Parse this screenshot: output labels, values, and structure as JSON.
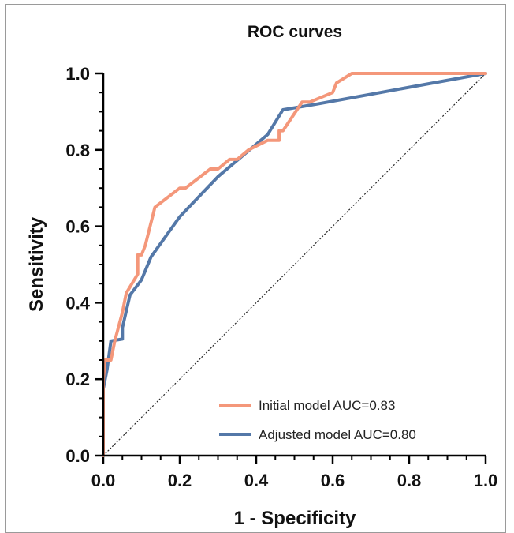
{
  "chart_data": {
    "type": "line",
    "title": "ROC curves",
    "xlabel": "1 - Specificity",
    "ylabel": "Sensitivity",
    "xlim": [
      0,
      1
    ],
    "ylim": [
      0,
      1
    ],
    "x_ticks": [
      "0.0",
      "0.2",
      "0.4",
      "0.6",
      "0.8",
      "1.0"
    ],
    "y_ticks": [
      "0.0",
      "0.2",
      "0.4",
      "0.6",
      "0.8",
      "1.0"
    ],
    "grid": false,
    "legend_position": "bottom-right",
    "reference_line": {
      "style": "dotted",
      "from": [
        0,
        0
      ],
      "to": [
        1,
        1
      ]
    },
    "series": [
      {
        "name": "Initial model AUC=0.83",
        "color": "#f4977a",
        "points": [
          [
            0,
            0
          ],
          [
            0,
            0.2
          ],
          [
            0.005,
            0.25
          ],
          [
            0.02,
            0.25
          ],
          [
            0.03,
            0.3
          ],
          [
            0.05,
            0.375
          ],
          [
            0.06,
            0.425
          ],
          [
            0.09,
            0.475
          ],
          [
            0.09,
            0.525
          ],
          [
            0.1,
            0.525
          ],
          [
            0.11,
            0.55
          ],
          [
            0.135,
            0.65
          ],
          [
            0.2,
            0.7
          ],
          [
            0.215,
            0.7
          ],
          [
            0.28,
            0.75
          ],
          [
            0.3,
            0.75
          ],
          [
            0.33,
            0.775
          ],
          [
            0.35,
            0.775
          ],
          [
            0.38,
            0.8
          ],
          [
            0.43,
            0.825
          ],
          [
            0.46,
            0.825
          ],
          [
            0.46,
            0.85
          ],
          [
            0.47,
            0.85
          ],
          [
            0.52,
            0.925
          ],
          [
            0.54,
            0.925
          ],
          [
            0.6,
            0.95
          ],
          [
            0.61,
            0.975
          ],
          [
            0.65,
            1.0
          ],
          [
            1.0,
            1.0
          ]
        ]
      },
      {
        "name": "Adjusted model AUC=0.80",
        "color": "#5478a8",
        "points": [
          [
            0,
            0
          ],
          [
            0,
            0.175
          ],
          [
            0.01,
            0.225
          ],
          [
            0.02,
            0.3
          ],
          [
            0.05,
            0.305
          ],
          [
            0.05,
            0.335
          ],
          [
            0.07,
            0.42
          ],
          [
            0.1,
            0.46
          ],
          [
            0.125,
            0.52
          ],
          [
            0.2,
            0.625
          ],
          [
            0.3,
            0.73
          ],
          [
            0.43,
            0.84
          ],
          [
            0.47,
            0.905
          ],
          [
            0.56,
            0.92
          ],
          [
            1.0,
            1.0
          ]
        ]
      }
    ]
  }
}
